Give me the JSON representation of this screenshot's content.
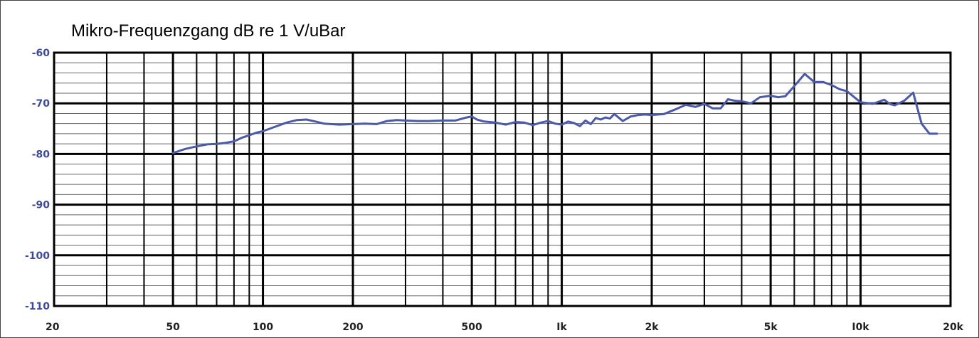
{
  "chart_data": {
    "type": "line",
    "title": "Mikro-Frequenzgang dB re 1 V/uBar",
    "xlabel": "",
    "ylabel": "",
    "x_scale": "log",
    "xlim": [
      20,
      20000
    ],
    "ylim": [
      -110,
      -60
    ],
    "grid": true,
    "x_tick_labels": [
      {
        "value": 20,
        "label": "20"
      },
      {
        "value": 50,
        "label": "50"
      },
      {
        "value": 100,
        "label": "100"
      },
      {
        "value": 200,
        "label": "200"
      },
      {
        "value": 500,
        "label": "500"
      },
      {
        "value": 1000,
        "label": "Ik"
      },
      {
        "value": 2000,
        "label": "2k"
      },
      {
        "value": 5000,
        "label": "5k"
      },
      {
        "value": 10000,
        "label": "I0k"
      },
      {
        "value": 20000,
        "label": "20k"
      }
    ],
    "y_tick_labels": [
      {
        "value": -60,
        "label": "-60"
      },
      {
        "value": -70,
        "label": "-70"
      },
      {
        "value": -80,
        "label": "-80"
      },
      {
        "value": -90,
        "label": "-90"
      },
      {
        "value": -100,
        "label": "-100"
      },
      {
        "value": -110,
        "label": "-110"
      }
    ],
    "series": [
      {
        "color": "#4a5aa8",
        "x": [
          50,
          55,
          60,
          65,
          70,
          75,
          80,
          85,
          90,
          95,
          100,
          110,
          120,
          130,
          140,
          150,
          160,
          180,
          200,
          220,
          240,
          260,
          280,
          300,
          330,
          360,
          400,
          440,
          480,
          500,
          520,
          550,
          600,
          650,
          700,
          750,
          800,
          850,
          900,
          950,
          1000,
          1050,
          1100,
          1150,
          1200,
          1250,
          1300,
          1350,
          1400,
          1450,
          1500,
          1600,
          1700,
          1800,
          1900,
          2000,
          2200,
          2400,
          2600,
          2800,
          3000,
          3200,
          3400,
          3600,
          3800,
          4000,
          4300,
          4600,
          5000,
          5300,
          5600,
          6000,
          6500,
          7000,
          7500,
          8000,
          8500,
          9000,
          10000,
          11000,
          12000,
          12500,
          13000,
          14000,
          15000,
          16000,
          17000,
          18000
        ],
        "values": [
          -79.8,
          -79.0,
          -78.5,
          -78.1,
          -78.0,
          -77.8,
          -77.5,
          -76.8,
          -76.3,
          -75.8,
          -75.5,
          -74.6,
          -73.8,
          -73.3,
          -73.2,
          -73.6,
          -74.0,
          -74.2,
          -74.1,
          -74.0,
          -74.1,
          -73.5,
          -73.3,
          -73.4,
          -73.5,
          -73.5,
          -73.4,
          -73.4,
          -72.8,
          -72.6,
          -73.2,
          -73.6,
          -73.8,
          -74.2,
          -73.7,
          -73.8,
          -74.3,
          -73.8,
          -73.5,
          -74.0,
          -74.2,
          -73.6,
          -73.9,
          -74.5,
          -73.4,
          -74.1,
          -72.9,
          -73.2,
          -72.8,
          -73.0,
          -72.1,
          -73.5,
          -72.6,
          -72.3,
          -72.2,
          -72.3,
          -72.1,
          -71.2,
          -70.3,
          -70.7,
          -70.1,
          -71.0,
          -71.0,
          -69.2,
          -69.5,
          -69.6,
          -70.0,
          -68.8,
          -68.5,
          -68.8,
          -68.6,
          -66.6,
          -64.2,
          -65.8,
          -65.8,
          -66.4,
          -67.2,
          -67.6,
          -69.8,
          -70.1,
          -69.3,
          -70.1,
          -70.4,
          -69.5,
          -67.9,
          -74.0,
          -76.0,
          -76.0
        ]
      }
    ]
  }
}
